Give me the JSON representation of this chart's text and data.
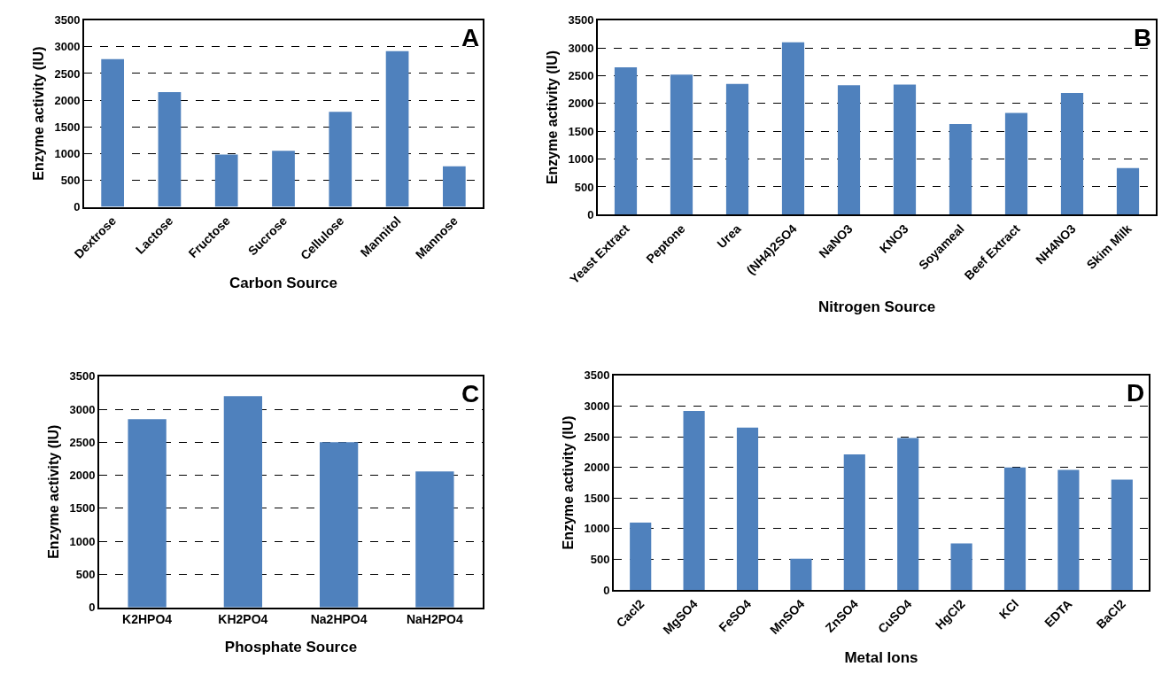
{
  "chart_data": [
    {
      "type": "bar",
      "categories": [
        "Dextrose",
        "Lactose",
        "Fructose",
        "Sucrose",
        "Cellulose",
        "Mannitol",
        "Mannose"
      ],
      "values": [
        2770,
        2150,
        980,
        1050,
        1780,
        2920,
        760
      ],
      "color": "#4f81bd",
      "xlabel": "Carbon Source",
      "ylabel": "Enzyme activity (IU)",
      "ylim": [
        0,
        3500
      ],
      "yticks": [
        0,
        500,
        1000,
        1500,
        2000,
        2500,
        3000,
        3500
      ],
      "grid": "y",
      "annotations": [
        "A"
      ]
    },
    {
      "type": "bar",
      "categories": [
        "Yeast Extract",
        "Peptone",
        "Urea",
        "(NH4)2SO4",
        "NaNO3",
        "KNO3",
        "Soyameal",
        "Beef Extract",
        "NH4NO3",
        "Skim Milk"
      ],
      "values": [
        2650,
        2520,
        2350,
        3100,
        2330,
        2340,
        1630,
        1830,
        2190,
        840
      ],
      "color": "#4f81bd",
      "xlabel": "Nitrogen Source",
      "ylabel": "Enzyme activity (IU)",
      "ylim": [
        0,
        3500
      ],
      "yticks": [
        0,
        500,
        1000,
        1500,
        2000,
        2500,
        3000,
        3500
      ],
      "grid": "y",
      "annotations": [
        "B"
      ]
    },
    {
      "type": "bar",
      "categories": [
        "K2HPO4",
        "KH2PO4",
        "Na2HPO4",
        "NaH2PO4"
      ],
      "values": [
        2850,
        3200,
        2500,
        2060
      ],
      "color": "#4f81bd",
      "xlabel": "Phosphate Source",
      "ylabel": "Enzyme activity (IU)",
      "ylim": [
        0,
        3500
      ],
      "yticks": [
        0,
        500,
        1000,
        1500,
        2000,
        2500,
        3000,
        3500
      ],
      "grid": "y",
      "annotations": [
        "C"
      ]
    },
    {
      "type": "bar",
      "categories": [
        "Cacl2",
        "MgSO4",
        "FeSO4",
        "MnSO4",
        "ZnSO4",
        "CuSO4",
        "HgCl2",
        "KCl",
        "EDTA",
        "BaCl2"
      ],
      "values": [
        1100,
        2920,
        2650,
        510,
        2210,
        2480,
        760,
        2000,
        1960,
        1800
      ],
      "color": "#4f81bd",
      "xlabel": "Metal Ions",
      "ylabel": "Enzyme activity (IU)",
      "ylim": [
        0,
        3500
      ],
      "yticks": [
        0,
        500,
        1000,
        1500,
        2000,
        2500,
        3000,
        3500
      ],
      "grid": "y",
      "annotations": [
        "D"
      ]
    }
  ]
}
